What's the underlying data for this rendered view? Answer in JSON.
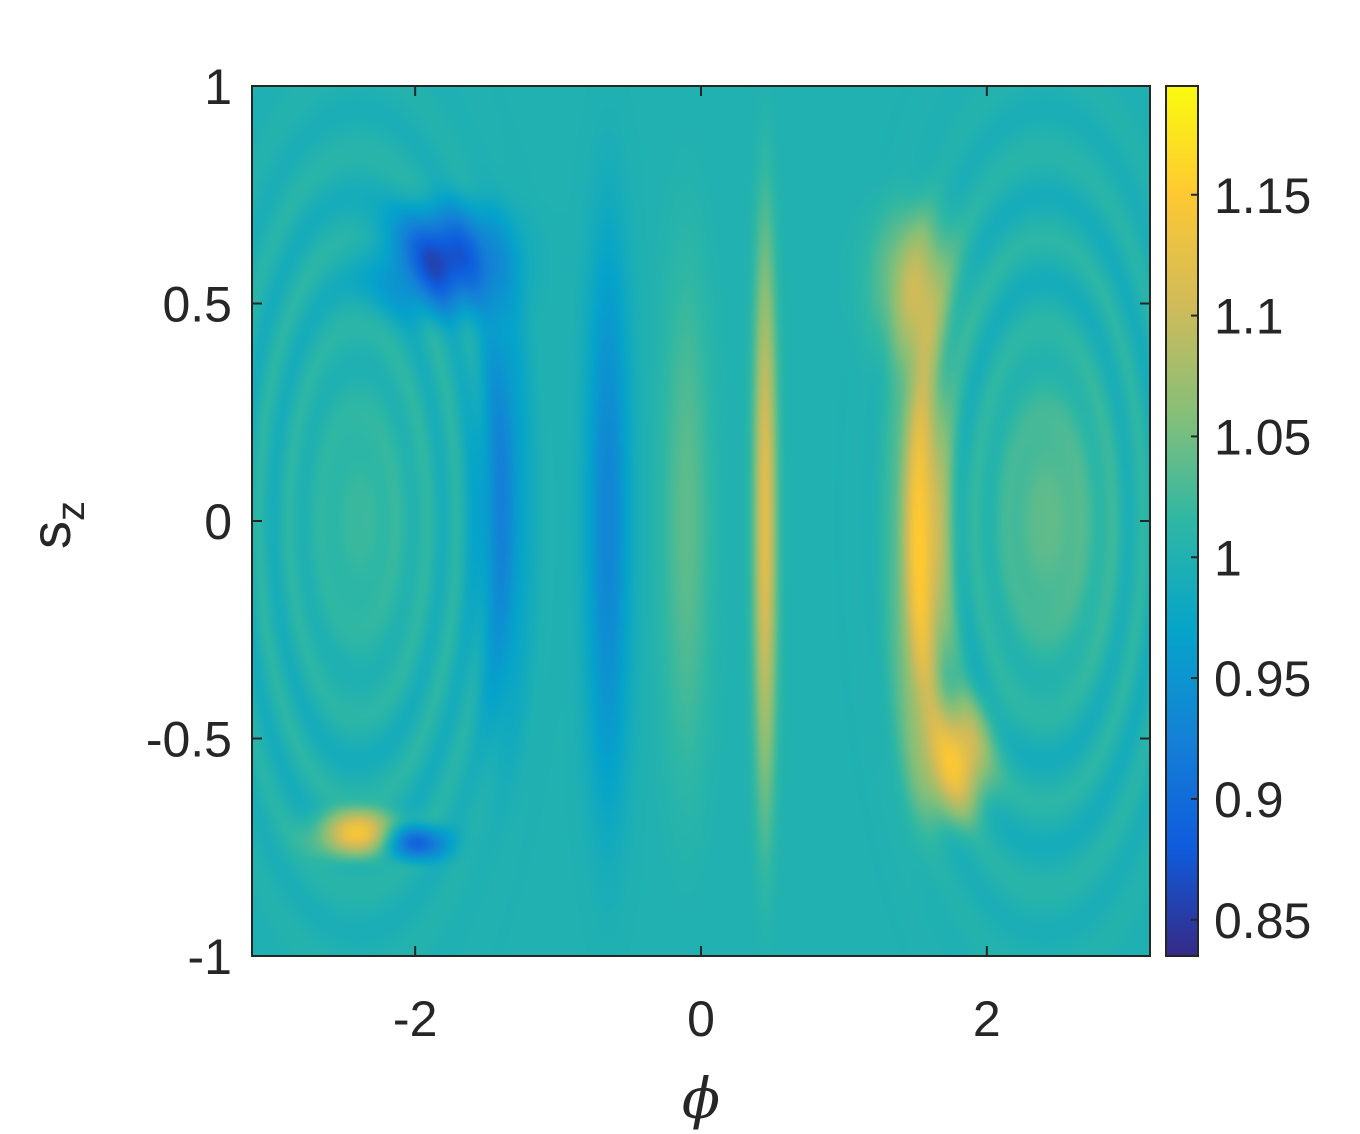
{
  "chart_data": {
    "type": "heatmap",
    "title": "",
    "xlabel": "ϕ",
    "ylabel": "s",
    "ylabel_subscript": "z",
    "xlim": [
      -3.1416,
      3.1416
    ],
    "ylim": [
      -1,
      1
    ],
    "xticks": [
      -2,
      0,
      2
    ],
    "xtick_labels": [
      "-2",
      "0",
      "2"
    ],
    "yticks": [
      -1,
      -0.5,
      0,
      0.5,
      1
    ],
    "ytick_labels": [
      "-1",
      "-0.5",
      "0",
      "0.5",
      "1"
    ],
    "colorbar": {
      "limits": [
        0.835,
        1.195
      ],
      "ticks": [
        0.85,
        0.9,
        0.95,
        1,
        1.05,
        1.1,
        1.15
      ],
      "tick_labels": [
        "0.85",
        "0.9",
        "0.95",
        "1",
        "1.05",
        "1.1",
        "1.15"
      ],
      "colormap": "parula",
      "colormap_stops": [
        "#352a87",
        "#0f5cdd",
        "#1481d6",
        "#06a4ca",
        "#2eb7a4",
        "#87bf77",
        "#d1bb59",
        "#fec832",
        "#f9fb0e"
      ]
    },
    "background_value": 1.0,
    "grid": false,
    "features": [
      {
        "name": "central-low-band",
        "phi": -0.65,
        "sz": 0.0,
        "width_phi": 0.22,
        "height_sz": 0.98,
        "value": 0.93
      },
      {
        "name": "central-mid-band",
        "phi": -0.1,
        "sz": 0.0,
        "width_phi": 0.25,
        "height_sz": 0.9,
        "value": 1.04
      },
      {
        "name": "central-high-band",
        "phi": 0.45,
        "sz": 0.0,
        "width_phi": 0.12,
        "height_sz": 0.98,
        "value": 1.12
      },
      {
        "name": "left-low-arc",
        "phi": -1.4,
        "sz": 0.05,
        "width_phi": 0.25,
        "height_sz": 0.75,
        "value": 0.93
      },
      {
        "name": "top-left-low-streak",
        "phi": -1.8,
        "sz": 0.6,
        "width_phi": 0.55,
        "height_sz": 0.18,
        "value": 0.86
      },
      {
        "name": "bottom-left-high-streak",
        "phi": -2.4,
        "sz": -0.72,
        "width_phi": 0.4,
        "height_sz": 0.08,
        "value": 1.15
      },
      {
        "name": "bottom-left-low-streak",
        "phi": -2.0,
        "sz": -0.74,
        "width_phi": 0.3,
        "height_sz": 0.06,
        "value": 0.87
      },
      {
        "name": "right-high-arc",
        "phi": 1.55,
        "sz": -0.05,
        "width_phi": 0.25,
        "height_sz": 0.75,
        "value": 1.15
      },
      {
        "name": "right-lower-high-arc",
        "phi": 1.8,
        "sz": -0.55,
        "width_phi": 0.3,
        "height_sz": 0.2,
        "value": 1.14
      },
      {
        "name": "right-upper-mid-band",
        "phi": 1.5,
        "sz": 0.55,
        "width_phi": 0.4,
        "height_sz": 0.25,
        "value": 1.08
      },
      {
        "name": "right-island-ring",
        "phi": 2.45,
        "sz": 0.0,
        "width_phi": 0.6,
        "height_sz": 0.5,
        "value": 1.04
      },
      {
        "name": "left-island-ring",
        "phi": -2.35,
        "sz": 0.0,
        "width_phi": 0.6,
        "height_sz": 0.5,
        "value": 1.02
      }
    ]
  }
}
